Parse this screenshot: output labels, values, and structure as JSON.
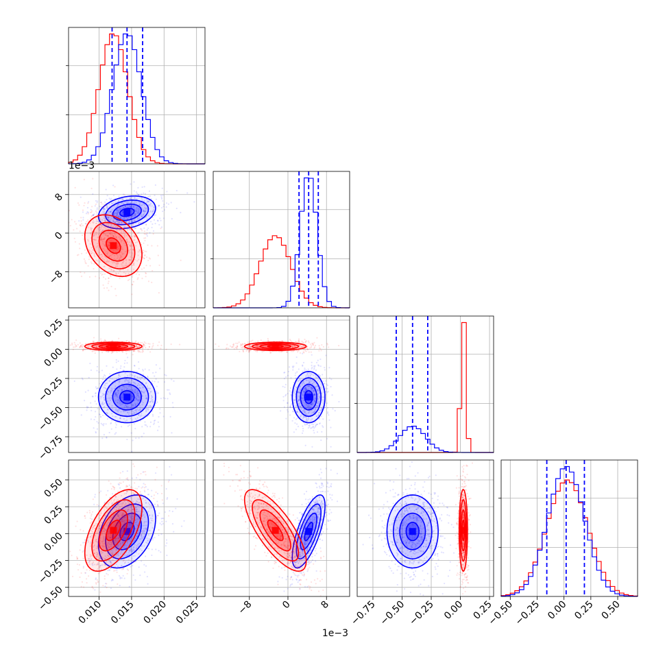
{
  "chart_data": {
    "type": "corner",
    "series": [
      {
        "name": "",
        "color": "#0000ff"
      },
      {
        "name": "",
        "color": "#ff0000"
      }
    ],
    "parameters": [
      {
        "range": [
          0.0053,
          0.0263
        ],
        "ticks": [
          {
            "v": 0.01,
            "label": "0.010"
          },
          {
            "v": 0.015,
            "label": "0.015"
          },
          {
            "v": 0.02,
            "label": "0.020"
          },
          {
            "v": 0.025,
            "label": "0.025"
          }
        ],
        "offset_label": ""
      },
      {
        "range": [
          -0.0155,
          0.0128
        ],
        "ticks": [
          {
            "v": -0.008,
            "label": "−8"
          },
          {
            "v": 0.0,
            "label": "0"
          },
          {
            "v": 0.008,
            "label": "8"
          }
        ],
        "offset_label": "1e−3"
      },
      {
        "range": [
          -0.885,
          0.285
        ],
        "ticks": [
          {
            "v": -0.75,
            "label": "−0.75"
          },
          {
            "v": -0.5,
            "label": "−0.50"
          },
          {
            "v": -0.25,
            "label": "−0.25"
          },
          {
            "v": 0.0,
            "label": "0.00"
          },
          {
            "v": 0.25,
            "label": "0.25"
          }
        ],
        "offset_label": ""
      },
      {
        "range": [
          -0.585,
          0.685
        ],
        "ticks": [
          {
            "v": -0.5,
            "label": "−0.50"
          },
          {
            "v": -0.25,
            "label": "−0.25"
          },
          {
            "v": 0.0,
            "label": "0.00"
          },
          {
            "v": 0.25,
            "label": "0.25"
          },
          {
            "v": 0.5,
            "label": "0.50"
          }
        ],
        "offset_label": ""
      }
    ],
    "distributions": {
      "blue": {
        "mean": [
          0.0143,
          0.0043,
          -0.41,
          0.02
        ],
        "sd": [
          0.0022,
          0.0017,
          0.11,
          0.17
        ]
      },
      "red": {
        "mean": [
          0.0122,
          -0.0026,
          0.025,
          0.03
        ],
        "sd": [
          0.0022,
          0.0032,
          0.018,
          0.19
        ]
      }
    },
    "quantile_lines": [
      [
        0.012,
        0.0143,
        0.0167
      ],
      [
        0.0023,
        0.0043,
        0.0063
      ],
      [
        -0.55,
        -0.41,
        -0.28
      ],
      [
        -0.16,
        0.02,
        0.19
      ]
    ],
    "grid": true
  }
}
